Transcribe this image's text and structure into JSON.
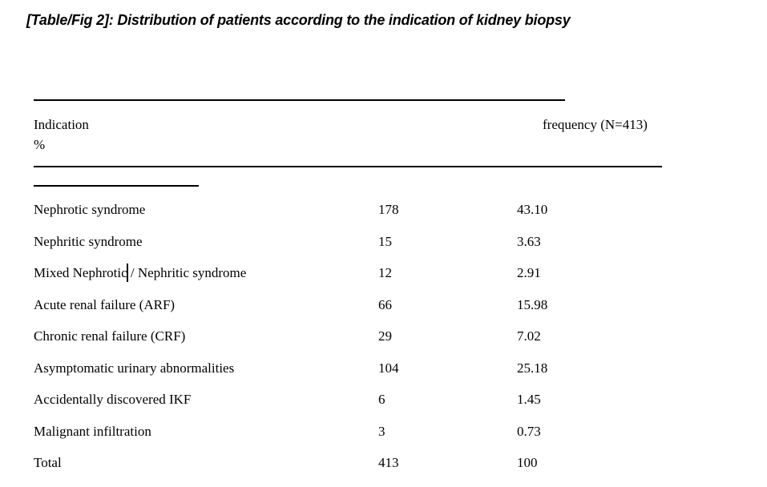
{
  "title": "[Table/Fig 2]: Distribution of patients according to the indication of kidney biopsy",
  "table": {
    "header": {
      "indication": "Indication",
      "frequency": "frequency (N=413)",
      "percent": "%"
    },
    "rows": [
      {
        "label": "Nephrotic syndrome",
        "count": "178",
        "pct": "43.10"
      },
      {
        "label": "Nephritic syndrome",
        "count": "15",
        "pct": "3.63"
      },
      {
        "label": "Mixed Nephrotic / Nephritic syndrome",
        "count": "12",
        "pct": "2.91"
      },
      {
        "label": "Acute renal failure (ARF)",
        "count": "66",
        "pct": "15.98"
      },
      {
        "label": "Chronic renal failure (CRF)",
        "count": "29",
        "pct": "7.02"
      },
      {
        "label": "Asymptomatic urinary abnormalities",
        "count": "104",
        "pct": "25.18"
      },
      {
        "label": "Accidentally discovered IKF",
        "count": "6",
        "pct": "1.45"
      },
      {
        "label": "Malignant infiltration",
        "count": "3",
        "pct": "0.73"
      },
      {
        "label": "Total",
        "count": "413",
        "pct": "100"
      }
    ]
  },
  "colors": {
    "text": "#000000",
    "background": "#ffffff",
    "rule": "#000000"
  },
  "chart_data": {
    "type": "table",
    "title": "[Table/Fig 2]: Distribution of patients according to the indication of kidney biopsy",
    "columns": [
      "Indication",
      "frequency (N=413)",
      "%"
    ],
    "categories": [
      "Nephrotic syndrome",
      "Nephritic syndrome",
      "Mixed Nephrotic / Nephritic syndrome",
      "Acute renal failure (ARF)",
      "Chronic renal failure (CRF)",
      "Asymptomatic urinary abnormalities",
      "Accidentally discovered IKF",
      "Malignant infiltration",
      "Total"
    ],
    "series": [
      {
        "name": "frequency",
        "values": [
          178,
          15,
          12,
          66,
          29,
          104,
          6,
          3,
          413
        ]
      },
      {
        "name": "percent",
        "values": [
          43.1,
          3.63,
          2.91,
          15.98,
          7.02,
          25.18,
          1.45,
          0.73,
          100
        ]
      }
    ]
  }
}
